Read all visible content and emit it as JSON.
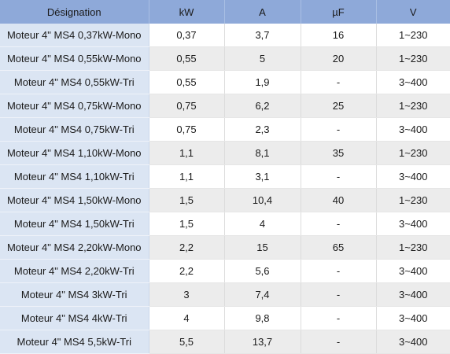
{
  "table": {
    "headers": [
      "Désignation",
      "kW",
      "A",
      "µF",
      "V"
    ],
    "rows": [
      [
        "Moteur 4\" MS4 0,37kW-Mono",
        "0,37",
        "3,7",
        "16",
        "1~230"
      ],
      [
        "Moteur 4\" MS4 0,55kW-Mono",
        "0,55",
        "5",
        "20",
        "1~230"
      ],
      [
        "Moteur 4\" MS4 0,55kW-Tri",
        "0,55",
        "1,9",
        "-",
        "3~400"
      ],
      [
        "Moteur 4\" MS4 0,75kW-Mono",
        "0,75",
        "6,2",
        "25",
        "1~230"
      ],
      [
        "Moteur 4\" MS4 0,75kW-Tri",
        "0,75",
        "2,3",
        "-",
        "3~400"
      ],
      [
        "Moteur 4\" MS4 1,10kW-Mono",
        "1,1",
        "8,1",
        "35",
        "1~230"
      ],
      [
        "Moteur 4\" MS4 1,10kW-Tri",
        "1,1",
        "3,1",
        "-",
        "3~400"
      ],
      [
        "Moteur 4\" MS4 1,50kW-Mono",
        "1,5",
        "10,4",
        "40",
        "1~230"
      ],
      [
        "Moteur 4\" MS4 1,50kW-Tri",
        "1,5",
        "4",
        "-",
        "3~400"
      ],
      [
        "Moteur 4\" MS4 2,20kW-Mono",
        "2,2",
        "15",
        "65",
        "1~230"
      ],
      [
        "Moteur 4\" MS4 2,20kW-Tri",
        "2,2",
        "5,6",
        "-",
        "3~400"
      ],
      [
        "Moteur 4\" MS4 3kW-Tri",
        "3",
        "7,4",
        "-",
        "3~400"
      ],
      [
        "Moteur 4\" MS4 4kW-Tri",
        "4",
        "9,8",
        "-",
        "3~400"
      ],
      [
        "Moteur 4\" MS4 5,5kW-Tri",
        "5,5",
        "13,7",
        "-",
        "3~400"
      ]
    ]
  },
  "colors": {
    "header_bg": "#8ea9d9",
    "designation_bg": "#dbe5f3",
    "alt_row_bg": "#ececec",
    "row_bg": "#ffffff"
  }
}
